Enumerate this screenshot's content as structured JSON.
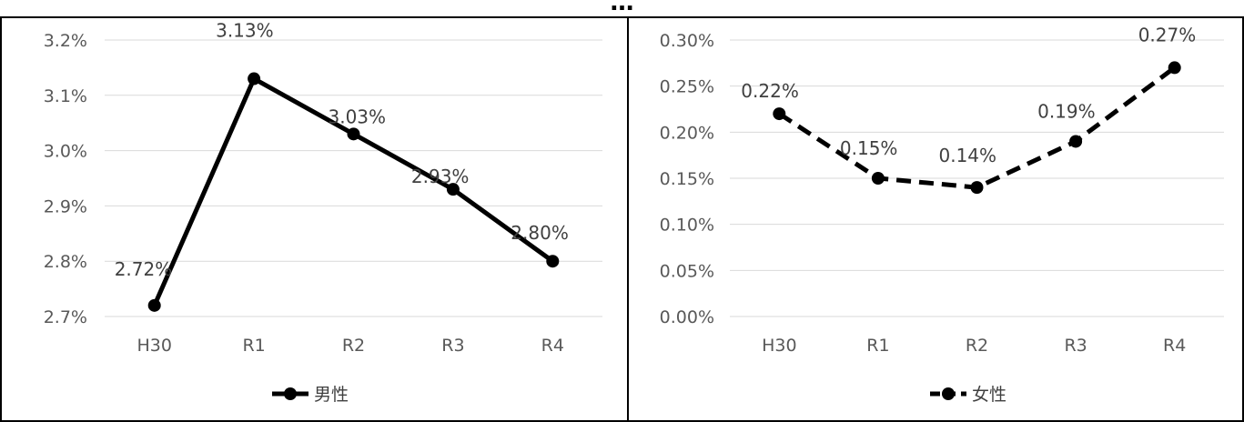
{
  "page": {
    "title": "…"
  },
  "chart_data": [
    {
      "type": "line",
      "categories": [
        "H30",
        "R1",
        "R2",
        "R3",
        "R4"
      ],
      "series": [
        {
          "name": "男性",
          "values": [
            2.72,
            3.13,
            3.03,
            2.93,
            2.8
          ],
          "color": "#000000",
          "dash": "solid"
        }
      ],
      "data_labels": [
        "2.72%",
        "3.13%",
        "3.03%",
        "2.93%",
        "2.80%"
      ],
      "y_ticks": [
        "3.2%",
        "3.1%",
        "3.0%",
        "2.9%",
        "2.8%",
        "2.7%"
      ],
      "ylim": [
        2.7,
        3.2
      ],
      "grid": true,
      "legend": "bottom",
      "title": "",
      "xlabel": "",
      "ylabel": ""
    },
    {
      "type": "line",
      "categories": [
        "H30",
        "R1",
        "R2",
        "R3",
        "R4"
      ],
      "series": [
        {
          "name": "女性",
          "values": [
            0.22,
            0.15,
            0.14,
            0.19,
            0.27
          ],
          "color": "#000000",
          "dash": "dashed"
        }
      ],
      "data_labels": [
        "0.22%",
        "0.15%",
        "0.14%",
        "0.19%",
        "0.27%"
      ],
      "y_ticks": [
        "0.30%",
        "0.25%",
        "0.20%",
        "0.15%",
        "0.10%",
        "0.05%",
        "0.00%"
      ],
      "ylim": [
        0,
        0.3
      ],
      "grid": true,
      "legend": "bottom",
      "title": "",
      "xlabel": "",
      "ylabel": ""
    }
  ]
}
